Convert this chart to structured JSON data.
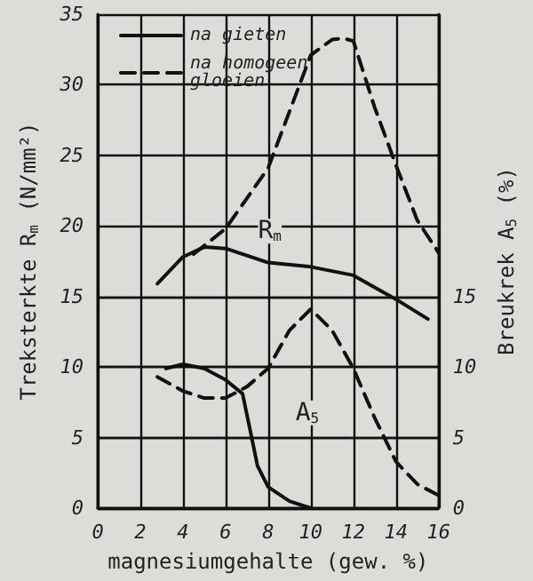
{
  "chart_data": {
    "type": "line",
    "xlabel": "magnesiumgehalte (gew. %)",
    "ylabel": "Treksterkte R$_{m}$ (N/mm²)",
    "y2label": "Breukrek A$_{5}$ (%)",
    "xlim": [
      0,
      16
    ],
    "xticks": [
      0,
      2,
      4,
      6,
      8,
      10,
      12,
      14,
      16
    ],
    "ylim": [
      0,
      35
    ],
    "yticks": [
      0,
      5,
      10,
      15,
      20,
      25,
      30,
      35
    ],
    "y2lim": [
      0,
      35
    ],
    "y2ticks": [
      0,
      5,
      10,
      15
    ],
    "grid": true,
    "legend": "top left",
    "marker": "none",
    "series": [
      {
        "name": "na gieten",
        "color": "#111111",
        "line_style": "solid",
        "x": [
          2.8,
          4,
          5,
          6,
          7,
          8,
          10,
          12,
          14,
          15.5
        ],
        "values": [
          15.9,
          17.8,
          18.5,
          18.4,
          17.9,
          17.4,
          17.1,
          16.5,
          14.8,
          13.4
        ]
      },
      {
        "name": "na homogeen gloeien",
        "color": "#111111",
        "line_style": "dashed",
        "x": [
          4.5,
          6,
          8,
          10,
          11,
          11.5,
          12,
          13,
          14,
          15,
          16
        ],
        "values": [
          18,
          19.8,
          24.1,
          32.1,
          33.2,
          33.3,
          33.1,
          28.4,
          24.3,
          20.4,
          18.1
        ]
      },
      {
        "color": "#111111",
        "line_style": "solid",
        "x": [
          3.2,
          4,
          5,
          6,
          6.8,
          7.2,
          7.5,
          8,
          9,
          10
        ],
        "values": [
          9.9,
          10.2,
          9.9,
          9.1,
          8.1,
          5.2,
          3,
          1.5,
          0.5,
          0
        ]
      },
      {
        "color": "#111111",
        "line_style": "dashed",
        "x": [
          2.8,
          4,
          5,
          6,
          7,
          8,
          9,
          10,
          11,
          12,
          13,
          14,
          15,
          16
        ],
        "values": [
          9.3,
          8.3,
          7.8,
          7.8,
          8.6,
          9.9,
          12.6,
          14.1,
          12.6,
          9.9,
          6.4,
          3.3,
          1.7,
          0.9
        ]
      }
    ],
    "annotations": [
      "R$_{m}$",
      "A$_{5}$"
    ]
  }
}
